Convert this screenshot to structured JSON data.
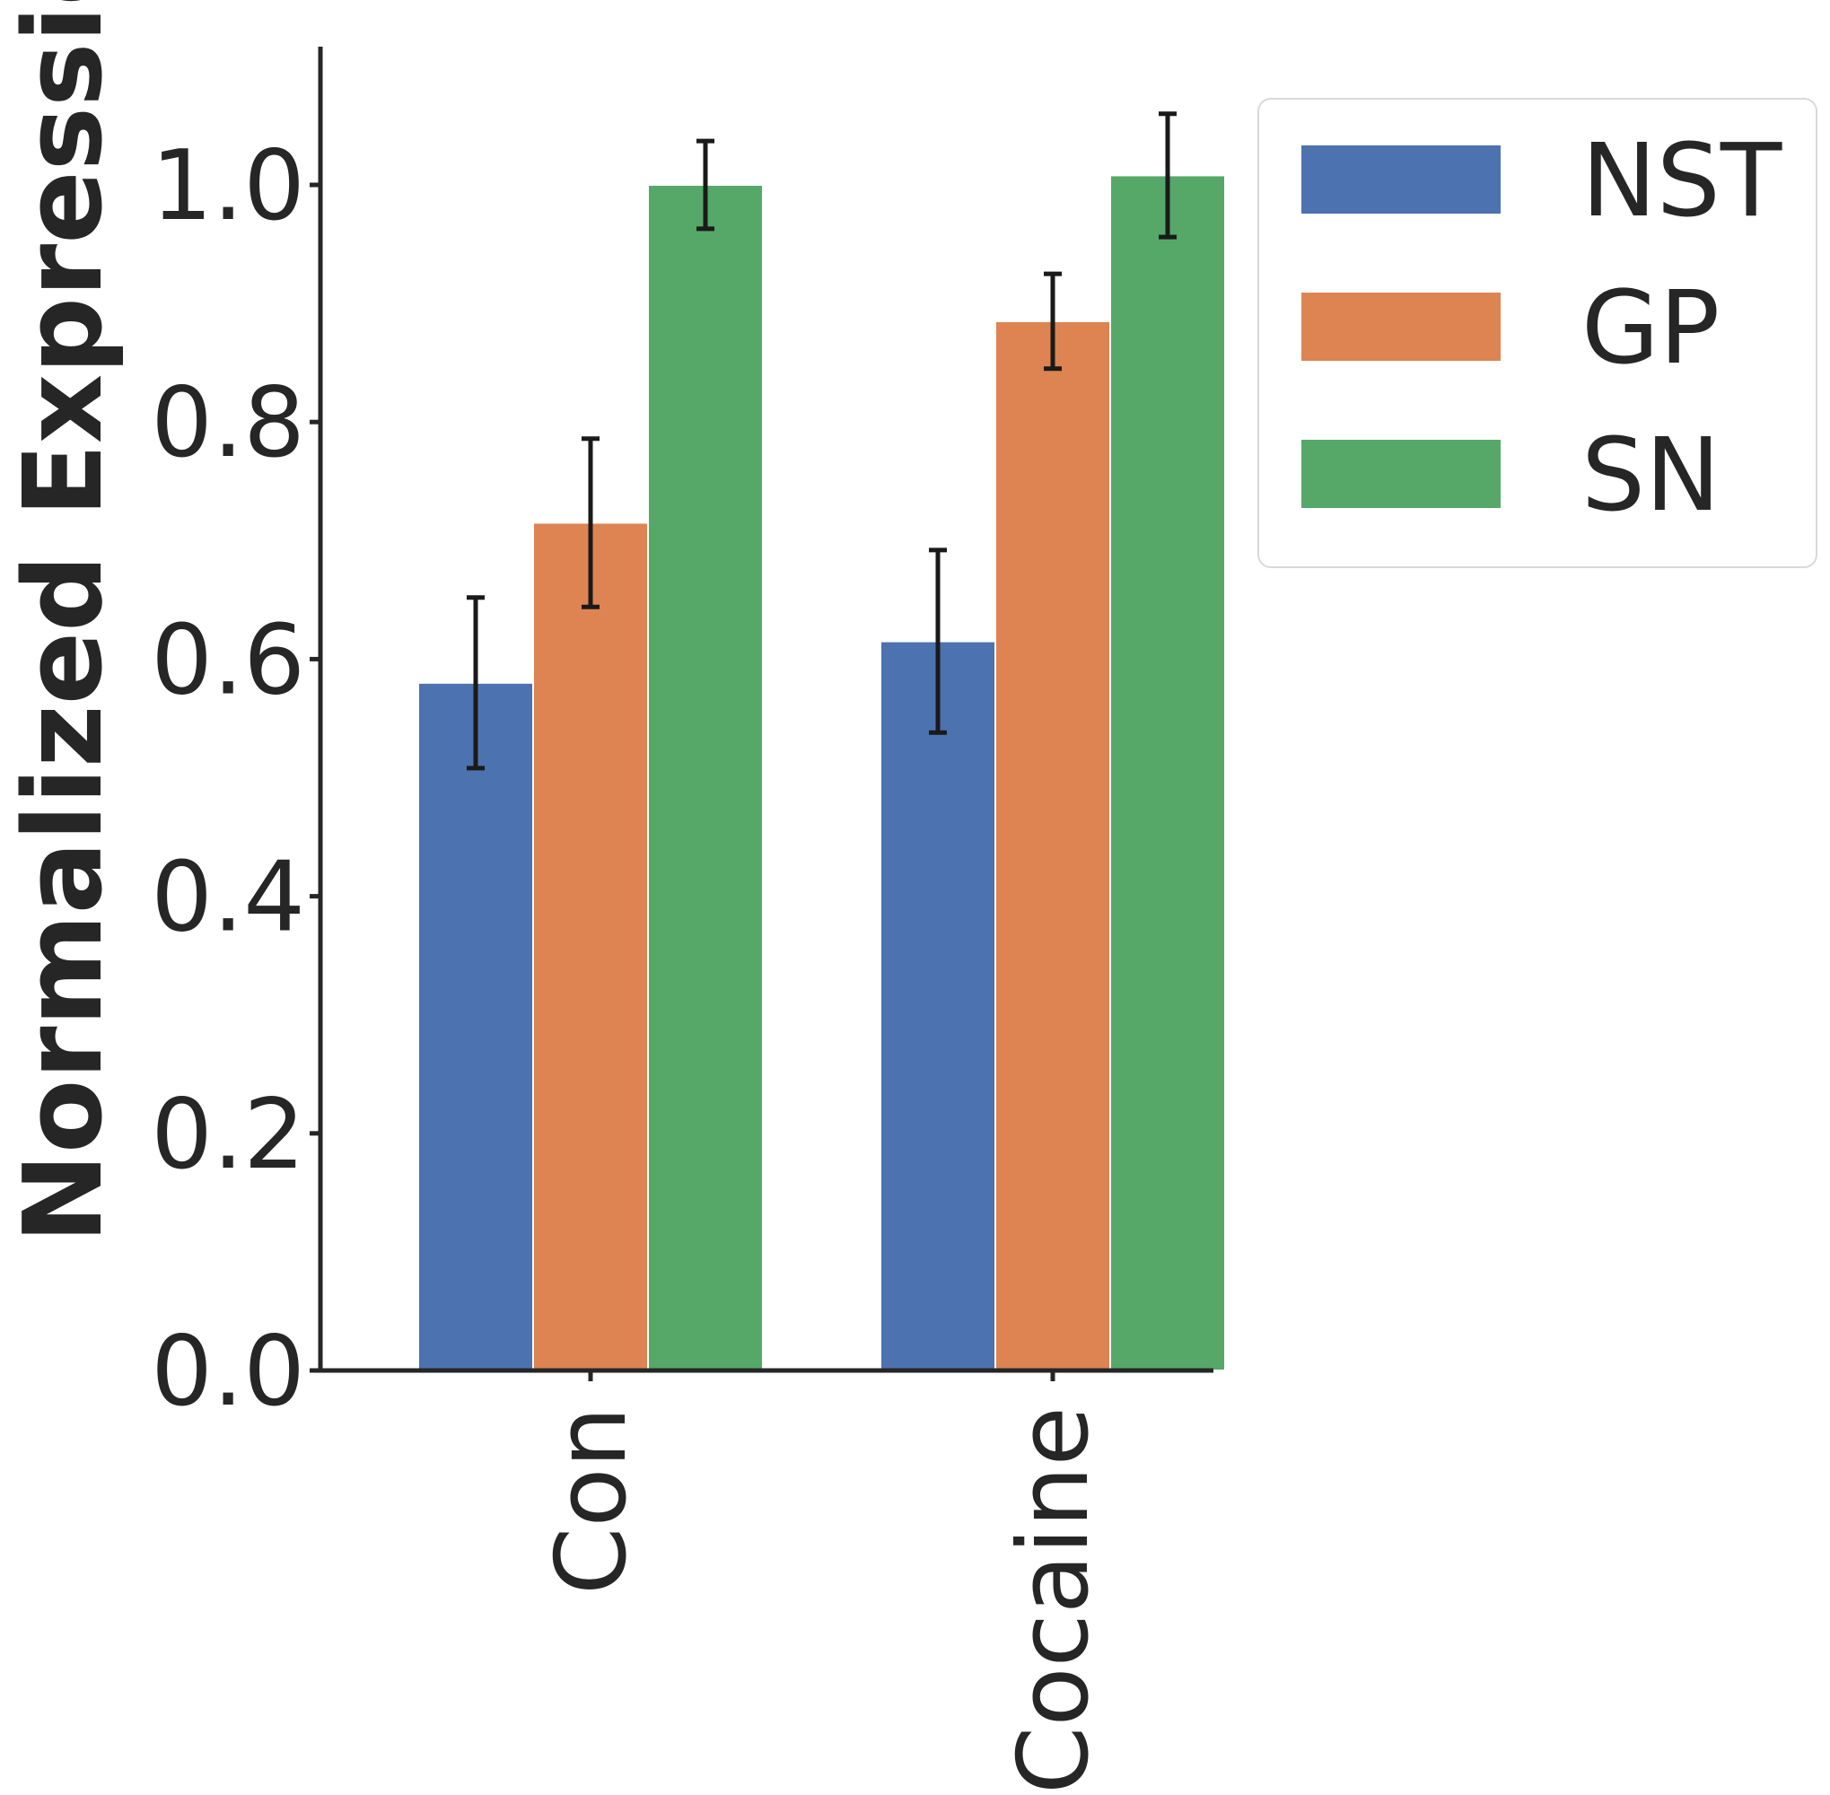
{
  "chart_data": {
    "type": "bar",
    "ylabel": "Normalized Expression",
    "xlabel": "",
    "ylim": [
      0,
      1.12
    ],
    "yticks": [
      "0.0",
      "0.2",
      "0.4",
      "0.6",
      "0.8",
      "1.0"
    ],
    "categories": [
      "Con",
      "Cocaine"
    ],
    "series": [
      {
        "name": "NST",
        "color": "#4c72b0",
        "values": [
          0.58,
          0.615
        ],
        "err": [
          0.072,
          0.077
        ]
      },
      {
        "name": "GP",
        "color": "#dd8452",
        "values": [
          0.715,
          0.885
        ],
        "err": [
          0.071,
          0.04
        ]
      },
      {
        "name": "SN",
        "color": "#55a868",
        "values": [
          1.0,
          1.008
        ],
        "err": [
          0.037,
          0.052
        ]
      }
    ],
    "legend_position": "upper right, outside plot",
    "grid": false
  }
}
